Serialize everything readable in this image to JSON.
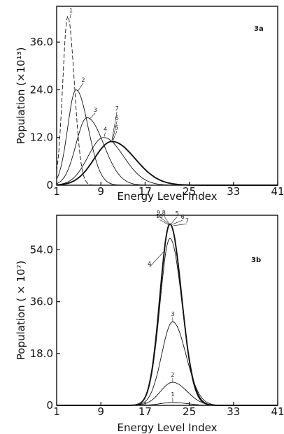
{
  "chart_data": [
    {
      "panel": "3a",
      "type": "line",
      "xlabel": "Energy Level Index",
      "ylabel": "Population (×10¹³)",
      "xlim": [
        1,
        41
      ],
      "ylim": [
        0,
        45
      ],
      "xticks": [
        1,
        9,
        17,
        25,
        33,
        41
      ],
      "xtick_labels": [
        "1",
        "9",
        "17",
        "25",
        "33",
        "41"
      ],
      "yticks": [
        0,
        12,
        24,
        36
      ],
      "ytick_labels": [
        "0",
        "12.0",
        "24.0",
        "36.0"
      ],
      "grid": false,
      "series": [
        {
          "name": "1",
          "peak_x": 3,
          "peak_y": 42.5,
          "width_left": 0.9,
          "width_right": 1.2,
          "dashed": true
        },
        {
          "name": "2",
          "peak_x": 4.5,
          "peak_y": 24,
          "width_left": 1.5,
          "width_right": 2.2,
          "dashed": false
        },
        {
          "name": "3",
          "peak_x": 6.5,
          "peak_y": 17,
          "width_left": 2.0,
          "width_right": 3.0,
          "dashed": false
        },
        {
          "name": "4",
          "peak_x": 9.5,
          "peak_y": 12,
          "width_left": 2.8,
          "width_right": 3.6,
          "dashed": false
        },
        {
          "name": "5",
          "peak_x": 11,
          "peak_y": 11,
          "width_left": 3.2,
          "width_right": 4.2,
          "dashed": false
        },
        {
          "name": "6",
          "peak_x": 11,
          "peak_y": 11,
          "width_left": 3.2,
          "width_right": 4.2,
          "dashed": false
        },
        {
          "name": "7",
          "peak_x": 11,
          "peak_y": 11,
          "width_left": 3.2,
          "width_right": 4.2,
          "dashed": false
        }
      ]
    },
    {
      "panel": "3b",
      "type": "line",
      "xlabel": "Energy Level Index",
      "ylabel": "Population ( × 10⁷)",
      "xlim": [
        1,
        41
      ],
      "ylim": [
        0,
        66
      ],
      "xticks": [
        1,
        9,
        17,
        25,
        33,
        41
      ],
      "xtick_labels": [
        "1",
        "9",
        "17",
        "25",
        "33",
        "41"
      ],
      "yticks": [
        0,
        18,
        36,
        54
      ],
      "ytick_labels": [
        "0",
        "18.0",
        "36.0",
        "54.0"
      ],
      "grid": false,
      "series": [
        {
          "name": "1",
          "peak_x": 22,
          "peak_y": 1,
          "width_left": 2.2,
          "width_right": 2.6
        },
        {
          "name": "2",
          "peak_x": 22,
          "peak_y": 8,
          "width_left": 2.2,
          "width_right": 2.6
        },
        {
          "name": "3",
          "peak_x": 22,
          "peak_y": 29,
          "width_left": 2.0,
          "width_right": 2.4
        },
        {
          "name": "4",
          "peak_x": 21.5,
          "peak_y": 58,
          "width_left": 1.8,
          "width_right": 2.2
        },
        {
          "name": "5",
          "peak_x": 21.5,
          "peak_y": 63,
          "width_left": 1.8,
          "width_right": 2.1
        },
        {
          "name": "6",
          "peak_x": 21.5,
          "peak_y": 63,
          "width_left": 1.8,
          "width_right": 2.1
        },
        {
          "name": "7",
          "peak_x": 21.5,
          "peak_y": 63,
          "width_left": 1.8,
          "width_right": 2.1
        },
        {
          "name": "8",
          "peak_x": 21.5,
          "peak_y": 63,
          "width_left": 1.8,
          "width_right": 2.1
        },
        {
          "name": "9",
          "peak_x": 21.5,
          "peak_y": 63,
          "width_left": 1.8,
          "width_right": 2.1
        },
        {
          "name": "10",
          "peak_x": 21.5,
          "peak_y": 63,
          "width_left": 1.8,
          "width_right": 2.1
        }
      ]
    }
  ]
}
